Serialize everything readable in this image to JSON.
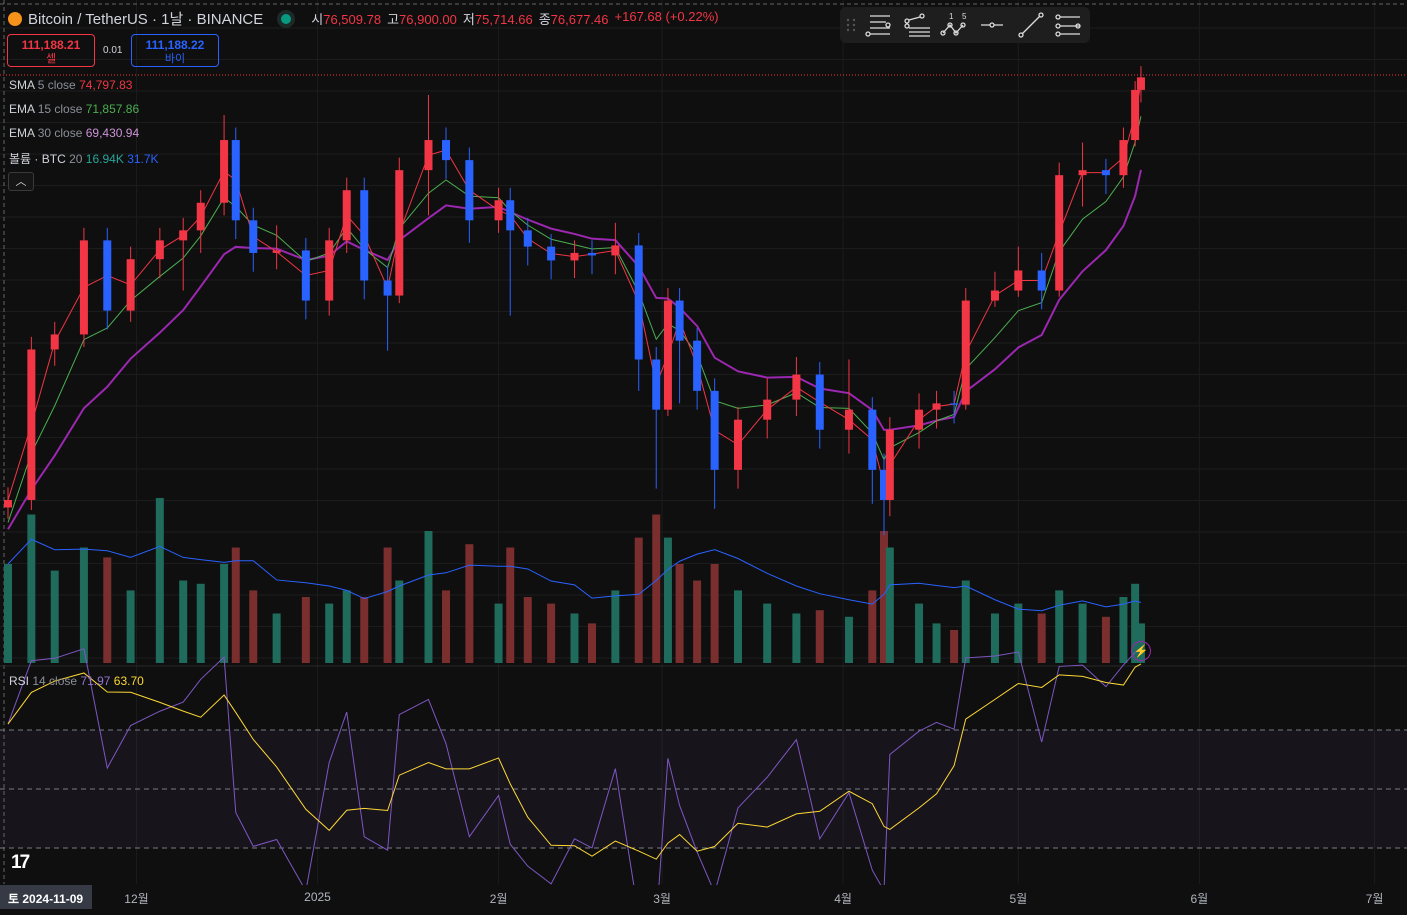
{
  "header": {
    "symbol": "Bitcoin / TetherUS · 1날 · BINANCE",
    "open_label": "시",
    "open": "76,509.78",
    "high_label": "고",
    "high": "76,900.00",
    "low_label": "저",
    "low": "75,714.66",
    "close_label": "종",
    "close": "76,677.46",
    "change": "+167.68 (+0.22%)"
  },
  "trade": {
    "sell_price": "111,188.21",
    "sell_label": "셀",
    "qty": "0.01",
    "buy_price": "111,188.22",
    "buy_label": "바이"
  },
  "legend": {
    "sma": {
      "name": "SMA",
      "params": "5 close",
      "value": "74,797.83"
    },
    "ema15": {
      "name": "EMA",
      "params": "15 close",
      "value": "71,857.86"
    },
    "ema30": {
      "name": "EMA",
      "params": "30 close",
      "value": "69,430.94"
    },
    "volume": {
      "name": "볼륨 · BTC",
      "params": "20",
      "value1": "16.94K",
      "value2": "31.7K"
    },
    "rsi": {
      "name": "RSI",
      "params": "14 close",
      "value1": "71.97",
      "value2": "63.70"
    }
  },
  "toolbar": {
    "elliott_labels": [
      "1",
      "5"
    ]
  },
  "cursor_date": "토 2024-11-09",
  "colors": {
    "up": "#f23645",
    "down": "#2962ff",
    "sma": "#f23645",
    "ema15": "#4caf50",
    "ema30": "#9c27b0",
    "vol_up": "#7a2e2e",
    "vol_down": "#1f6b5c",
    "vol_ma": "#2962ff",
    "rsi": "#7e57c2",
    "rsi_ma": "#fdd835"
  },
  "chart_data": {
    "type": "candlestick",
    "title": "Bitcoin / TetherUS · 1날 · BINANCE",
    "x_unit": "days since 2024-11-09",
    "x_ticks": [
      {
        "label": "12월",
        "day": 22
      },
      {
        "label": "2025",
        "day": 53
      },
      {
        "label": "2월",
        "day": 84
      },
      {
        "label": "3월",
        "day": 112
      },
      {
        "label": "4월",
        "day": 143
      },
      {
        "label": "5월",
        "day": 173
      },
      {
        "label": "6월",
        "day": 204
      },
      {
        "label": "7월",
        "day": 234
      }
    ],
    "price_unit": "thousand USDT",
    "ylim": [
      72,
      113
    ],
    "last_price": 111.188,
    "candles_fields": [
      "day",
      "open",
      "high",
      "low",
      "close",
      "volume_k"
    ],
    "candles": [
      [
        0,
        76.7,
        78.3,
        75.8,
        77.3,
        30
      ],
      [
        4,
        77.3,
        90.3,
        76.5,
        89.3,
        45
      ],
      [
        8,
        89.3,
        91.5,
        88.0,
        90.5,
        28
      ],
      [
        13,
        90.5,
        99.0,
        89.5,
        98.0,
        35
      ],
      [
        17,
        98.0,
        99.0,
        90.9,
        92.4,
        32
      ],
      [
        21,
        92.4,
        97.5,
        91.5,
        96.5,
        22
      ],
      [
        26,
        96.5,
        99.0,
        95.0,
        98.0,
        50
      ],
      [
        30,
        98.0,
        99.8,
        94.0,
        98.8,
        25
      ],
      [
        33,
        98.8,
        102.0,
        97.0,
        101.0,
        24
      ],
      [
        37,
        101.0,
        108.0,
        100.0,
        106.0,
        30
      ],
      [
        39,
        106.0,
        107.0,
        98.1,
        99.6,
        35
      ],
      [
        42,
        99.6,
        100.6,
        95.5,
        97.0,
        22
      ],
      [
        46,
        97.0,
        99.2,
        95.7,
        97.2,
        15
      ],
      [
        51,
        97.2,
        98.2,
        91.7,
        93.2,
        20
      ],
      [
        55,
        93.2,
        99.0,
        92.0,
        98.0,
        18
      ],
      [
        58,
        98.0,
        103.0,
        97.0,
        102.0,
        22
      ],
      [
        61,
        102.0,
        103.0,
        93.3,
        94.8,
        20
      ],
      [
        65,
        94.8,
        96.0,
        89.2,
        93.6,
        35
      ],
      [
        67,
        93.6,
        104.6,
        93.0,
        103.6,
        25
      ],
      [
        72,
        103.6,
        109.6,
        100.0,
        106.0,
        40
      ],
      [
        75,
        106.0,
        107.0,
        102.9,
        104.4,
        22
      ],
      [
        79,
        104.4,
        105.4,
        97.8,
        99.6,
        36
      ],
      [
        84,
        99.6,
        102.2,
        98.6,
        101.2,
        18
      ],
      [
        86,
        101.2,
        102.2,
        92.0,
        98.8,
        35
      ],
      [
        89,
        98.8,
        99.8,
        96.0,
        97.5,
        20
      ],
      [
        93,
        97.5,
        98.5,
        94.9,
        96.4,
        18
      ],
      [
        97,
        96.4,
        98.0,
        95.0,
        97.0,
        15
      ],
      [
        100,
        97.0,
        98.0,
        95.3,
        96.8,
        12
      ],
      [
        104,
        96.8,
        99.4,
        95.3,
        97.6,
        22
      ],
      [
        108,
        97.6,
        98.6,
        86.0,
        88.5,
        38
      ],
      [
        111,
        88.5,
        89.5,
        78.2,
        84.5,
        45
      ],
      [
        113,
        84.5,
        94.2,
        84.0,
        93.2,
        38
      ],
      [
        115,
        93.2,
        94.2,
        85.0,
        90.0,
        30
      ],
      [
        118,
        90.0,
        91.0,
        84.5,
        86.0,
        25
      ],
      [
        121,
        86.0,
        87.0,
        76.6,
        79.7,
        30
      ],
      [
        125,
        79.7,
        84.7,
        78.2,
        83.7,
        22
      ],
      [
        130,
        83.7,
        87.0,
        82.2,
        85.3,
        18
      ],
      [
        135,
        85.3,
        88.7,
        84.0,
        87.3,
        15
      ],
      [
        139,
        87.3,
        88.3,
        81.4,
        82.9,
        16
      ],
      [
        144,
        82.9,
        88.5,
        81.0,
        84.5,
        14
      ],
      [
        148,
        84.5,
        85.5,
        77.0,
        79.7,
        22
      ],
      [
        150,
        79.7,
        81.0,
        74.5,
        77.3,
        40
      ],
      [
        151,
        77.3,
        83.9,
        76.0,
        82.9,
        35
      ],
      [
        156,
        82.9,
        85.8,
        81.4,
        84.5,
        18
      ],
      [
        159,
        84.5,
        86.0,
        83.0,
        85.0,
        12
      ],
      [
        162,
        85.0,
        86.0,
        83.4,
        84.9,
        10
      ],
      [
        164,
        84.9,
        94.2,
        84.5,
        93.2,
        25
      ],
      [
        169,
        93.2,
        95.5,
        92.7,
        94.0,
        15
      ],
      [
        173,
        94.0,
        97.5,
        93.5,
        95.6,
        18
      ],
      [
        177,
        95.6,
        97.0,
        92.5,
        94.0,
        15
      ],
      [
        180,
        94.0,
        104.2,
        93.5,
        103.2,
        22
      ],
      [
        184,
        103.2,
        105.8,
        100.7,
        103.6,
        18
      ],
      [
        188,
        103.6,
        104.5,
        101.7,
        103.2,
        14
      ],
      [
        191,
        103.2,
        107.0,
        102.2,
        106.0,
        20
      ],
      [
        193,
        106.0,
        110.7,
        105.5,
        110.0,
        24
      ],
      [
        194,
        110.0,
        111.9,
        109.0,
        111.0,
        12
      ]
    ],
    "rsi_levels": [
      70,
      50,
      30
    ]
  }
}
